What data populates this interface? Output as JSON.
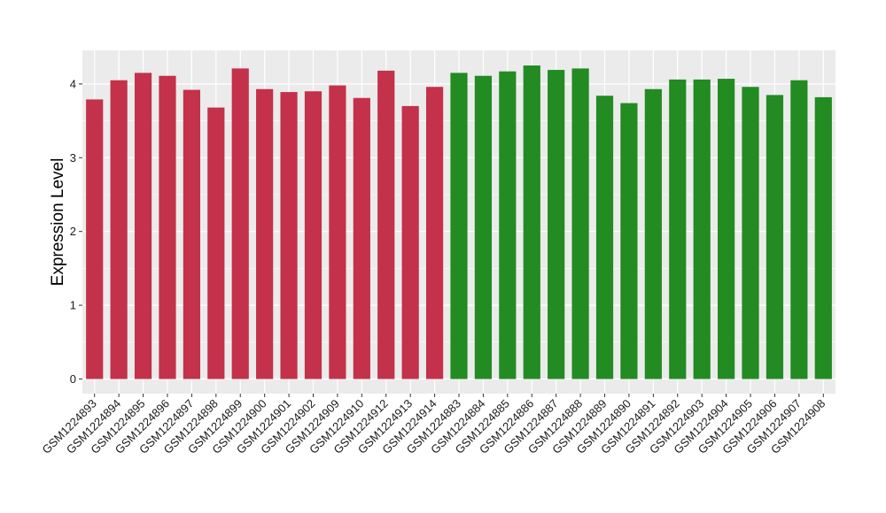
{
  "chart_data": {
    "type": "bar",
    "title": "",
    "xlabel": "",
    "ylabel": "Expression Level",
    "ylim": [
      0,
      4.45
    ],
    "yticks": [
      0,
      1,
      2,
      3,
      4
    ],
    "grid": true,
    "legend": "none",
    "colors": {
      "panel_bg": "#ebebeb",
      "grid": "#ffffff",
      "group_a": "#c3314a",
      "group_b": "#228b22"
    },
    "categories": [
      "GSM1224893",
      "GSM1224894",
      "GSM1224895",
      "GSM1224896",
      "GSM1224897",
      "GSM1224898",
      "GSM1224899",
      "GSM1224900",
      "GSM1224901",
      "GSM1224902",
      "GSM1224909",
      "GSM1224910",
      "GSM1224912",
      "GSM1224913",
      "GSM1224914",
      "GSM1224883",
      "GSM1224884",
      "GSM1224885",
      "GSM1224886",
      "GSM1224887",
      "GSM1224888",
      "GSM1224889",
      "GSM1224890",
      "GSM1224891",
      "GSM1224892",
      "GSM1224903",
      "GSM1224904",
      "GSM1224905",
      "GSM1224906",
      "GSM1224907",
      "GSM1224908"
    ],
    "values": [
      3.79,
      4.05,
      4.15,
      4.11,
      3.92,
      3.68,
      4.21,
      3.93,
      3.89,
      3.9,
      3.98,
      3.81,
      4.18,
      3.7,
      3.96,
      4.15,
      4.11,
      4.17,
      4.25,
      4.19,
      4.21,
      3.84,
      3.74,
      3.93,
      4.06,
      4.06,
      4.07,
      3.96,
      3.85,
      4.05,
      3.82
    ],
    "bar_colors": [
      "#c3314a",
      "#c3314a",
      "#c3314a",
      "#c3314a",
      "#c3314a",
      "#c3314a",
      "#c3314a",
      "#c3314a",
      "#c3314a",
      "#c3314a",
      "#c3314a",
      "#c3314a",
      "#c3314a",
      "#c3314a",
      "#c3314a",
      "#228b22",
      "#228b22",
      "#228b22",
      "#228b22",
      "#228b22",
      "#228b22",
      "#228b22",
      "#228b22",
      "#228b22",
      "#228b22",
      "#228b22",
      "#228b22",
      "#228b22",
      "#228b22",
      "#228b22",
      "#228b22"
    ]
  }
}
